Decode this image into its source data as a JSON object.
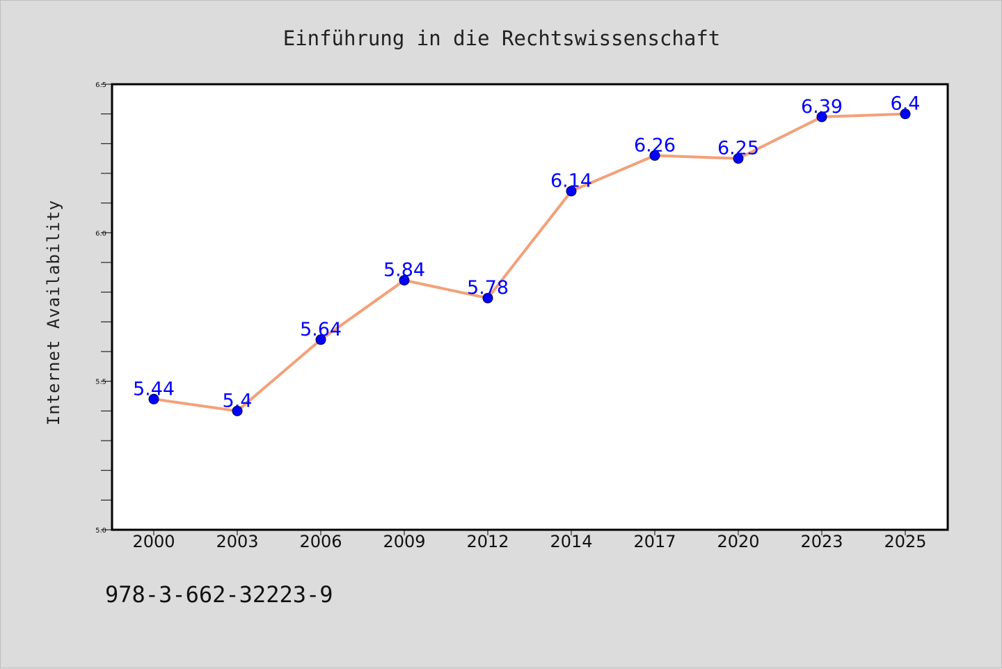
{
  "chart_data": {
    "type": "line",
    "title": "Einführung in die Rechtswissenschaft",
    "xlabel": "",
    "ylabel": "Internet Availability",
    "categories": [
      "2000",
      "2003",
      "2006",
      "2009",
      "2012",
      "2014",
      "2017",
      "2020",
      "2023",
      "2025"
    ],
    "series": [
      {
        "values": [
          5.44,
          5.4,
          5.64,
          5.84,
          5.78,
          6.14,
          6.26,
          6.25,
          6.39,
          6.4
        ],
        "data_labels": [
          "5.44",
          "5.4",
          "5.64",
          "5.84",
          "5.78",
          "6.14",
          "6.26",
          "6.25",
          "6.39",
          "6.4"
        ],
        "line_color": "#f4a07a",
        "marker_color": "#0000ff"
      }
    ],
    "ylim": [
      5.0,
      6.5
    ],
    "yticks": [
      "5.0",
      "5.5",
      "6.0",
      "6.5"
    ],
    "y_minor_step": 0.1,
    "grid": false,
    "legend": "none"
  },
  "footer": {
    "isbn": "978-3-662-32223-9"
  },
  "colors": {
    "background": "#dcdcdc",
    "plot_background": "#ffffff",
    "data_label": "#0000ff"
  }
}
